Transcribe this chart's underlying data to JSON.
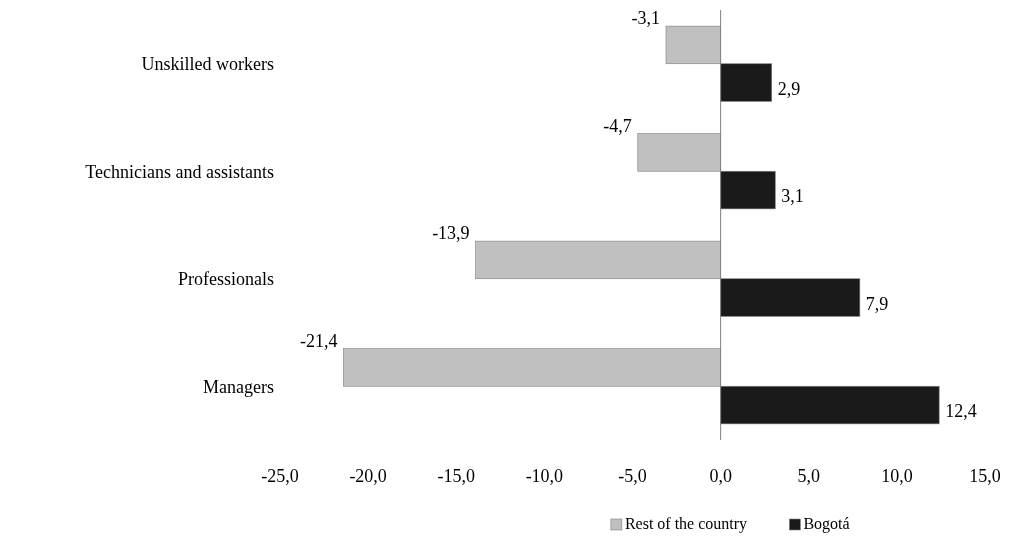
{
  "chart_data": {
    "type": "bar",
    "orientation": "horizontal",
    "categories": [
      "Unskilled workers",
      "Technicians and assistants",
      "Professionals",
      "Managers"
    ],
    "series": [
      {
        "name": "Rest of the country",
        "color": "#c0c0c0",
        "values": [
          -3.1,
          -4.7,
          -13.9,
          -21.4
        ],
        "value_labels": [
          "-3,1",
          "-4,7",
          "-13,9",
          "-21,4"
        ]
      },
      {
        "name": "Bogotá",
        "color": "#1a1a1a",
        "values": [
          2.9,
          3.1,
          7.9,
          12.4
        ],
        "value_labels": [
          "2,9",
          "3,1",
          "7,9",
          "12,4"
        ]
      }
    ],
    "xlim": [
      -25,
      15
    ],
    "xticks": [
      {
        "value": -25,
        "label": "-25,0"
      },
      {
        "value": -20,
        "label": "-20,0"
      },
      {
        "value": -15,
        "label": "-15,0"
      },
      {
        "value": -10,
        "label": "-10,0"
      },
      {
        "value": -5,
        "label": "-5,0"
      },
      {
        "value": 0,
        "label": "0,0"
      },
      {
        "value": 5,
        "label": "5,0"
      },
      {
        "value": 10,
        "label": "10,0"
      },
      {
        "value": 15,
        "label": "15,0"
      }
    ],
    "legend": "bottom"
  }
}
